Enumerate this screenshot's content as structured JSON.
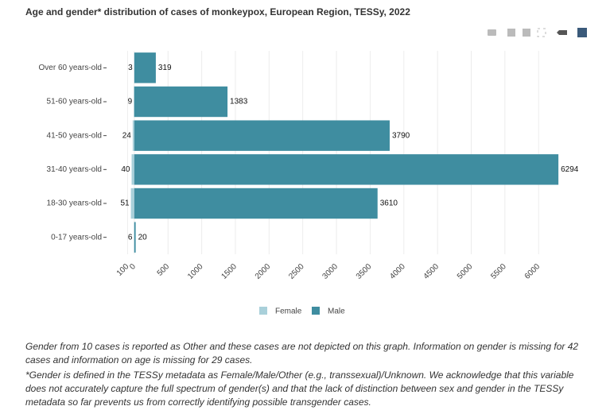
{
  "chart_data": {
    "type": "pyramid",
    "title": "Age and gender* distribution of cases of monkeypox, European Region, TESSy, 2022",
    "categories": [
      "Over 60 years-old",
      "51-60 years-old",
      "41-50 years-old",
      "31-40 years-old",
      "18-30 years-old",
      "0-17 years-old"
    ],
    "series": [
      {
        "name": "Female",
        "color": "#a9d0da",
        "values": [
          -3,
          -9,
          -24,
          -40,
          -51,
          -6
        ],
        "value_labels": [
          "3",
          "9",
          "24",
          "40",
          "51",
          "6"
        ]
      },
      {
        "name": "Male",
        "color": "#3f8da0",
        "values": [
          319,
          1383,
          3790,
          6294,
          3610,
          20
        ]
      }
    ],
    "xlim": [
      -400,
      6800
    ],
    "xticks": [
      {
        "value": -100,
        "label": "100"
      },
      0,
      500,
      1000,
      1500,
      2000,
      2500,
      3000,
      3500,
      4000,
      4500,
      5000,
      5500,
      6000
    ],
    "grid": true,
    "notes": [
      "Gender from 10 cases is reported as Other and these cases are not depicted on this graph. Information on gender is missing for 42 cases and information on age is missing for 29 cases.",
      "*Gender is defined in the TESSy metadata as Female/Male/Other (e.g., transsexual)/Unknown. We acknowledge that this variable does not accurately capture the full spectrum of gender(s) and that the lack of distinction between sex and gender in the TESSy metadata so far prevents us from correctly identifying possible transgender cases."
    ]
  }
}
